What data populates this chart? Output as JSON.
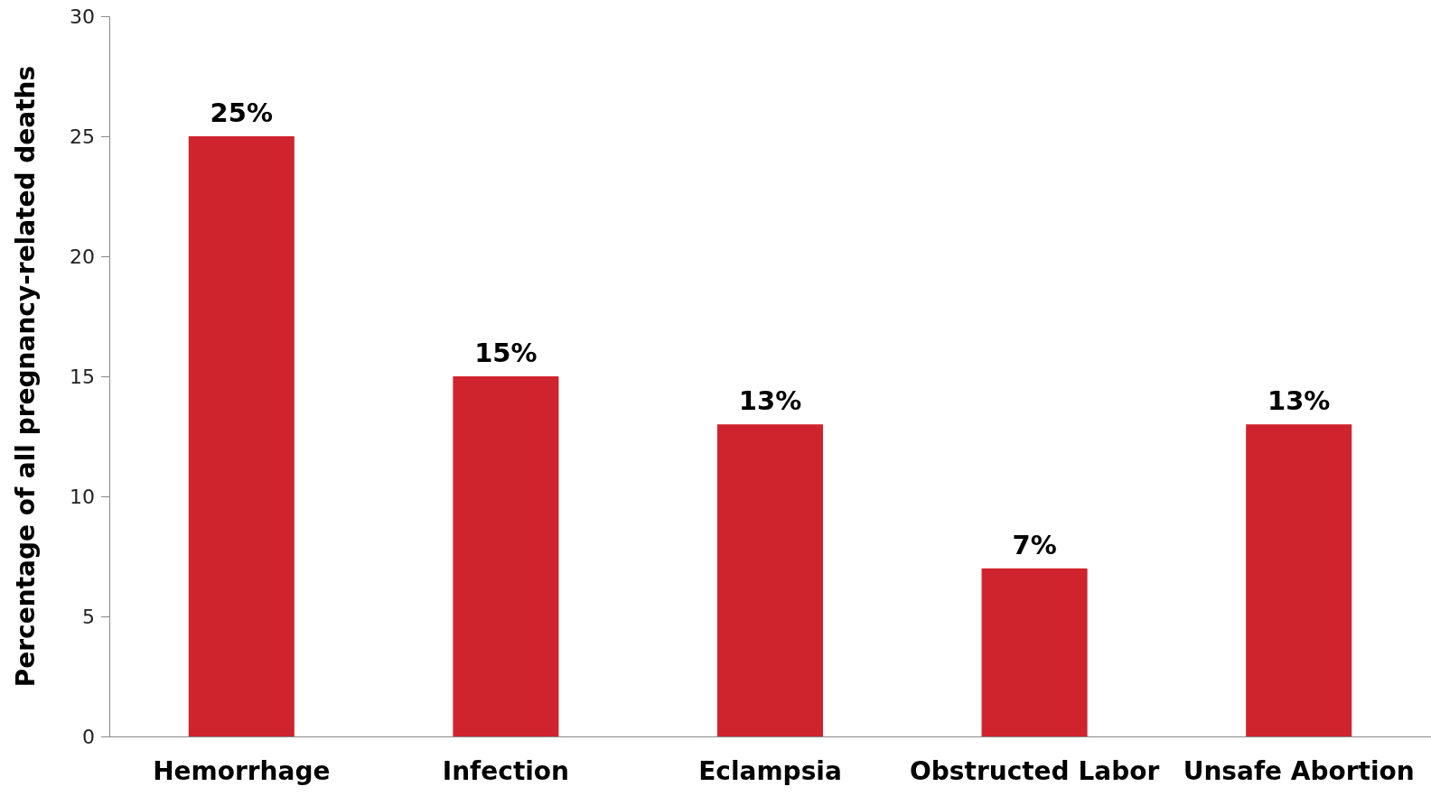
{
  "chart_data": {
    "type": "bar",
    "ylabel": "Percentage of all pregnancy-related deaths",
    "categories": [
      "Hemorrhage",
      "Infection",
      "Eclampsia",
      "Obstructed Labor",
      "Unsafe Abortion"
    ],
    "values": [
      25,
      15,
      13,
      7,
      13
    ],
    "color": "#cf232e",
    "value_labels": [
      "25%",
      "15%",
      "13%",
      "7%",
      "13%"
    ],
    "ylim": [
      0,
      30
    ],
    "yticks": [
      0,
      5,
      10,
      15,
      20,
      25,
      30
    ],
    "grid": false
  }
}
